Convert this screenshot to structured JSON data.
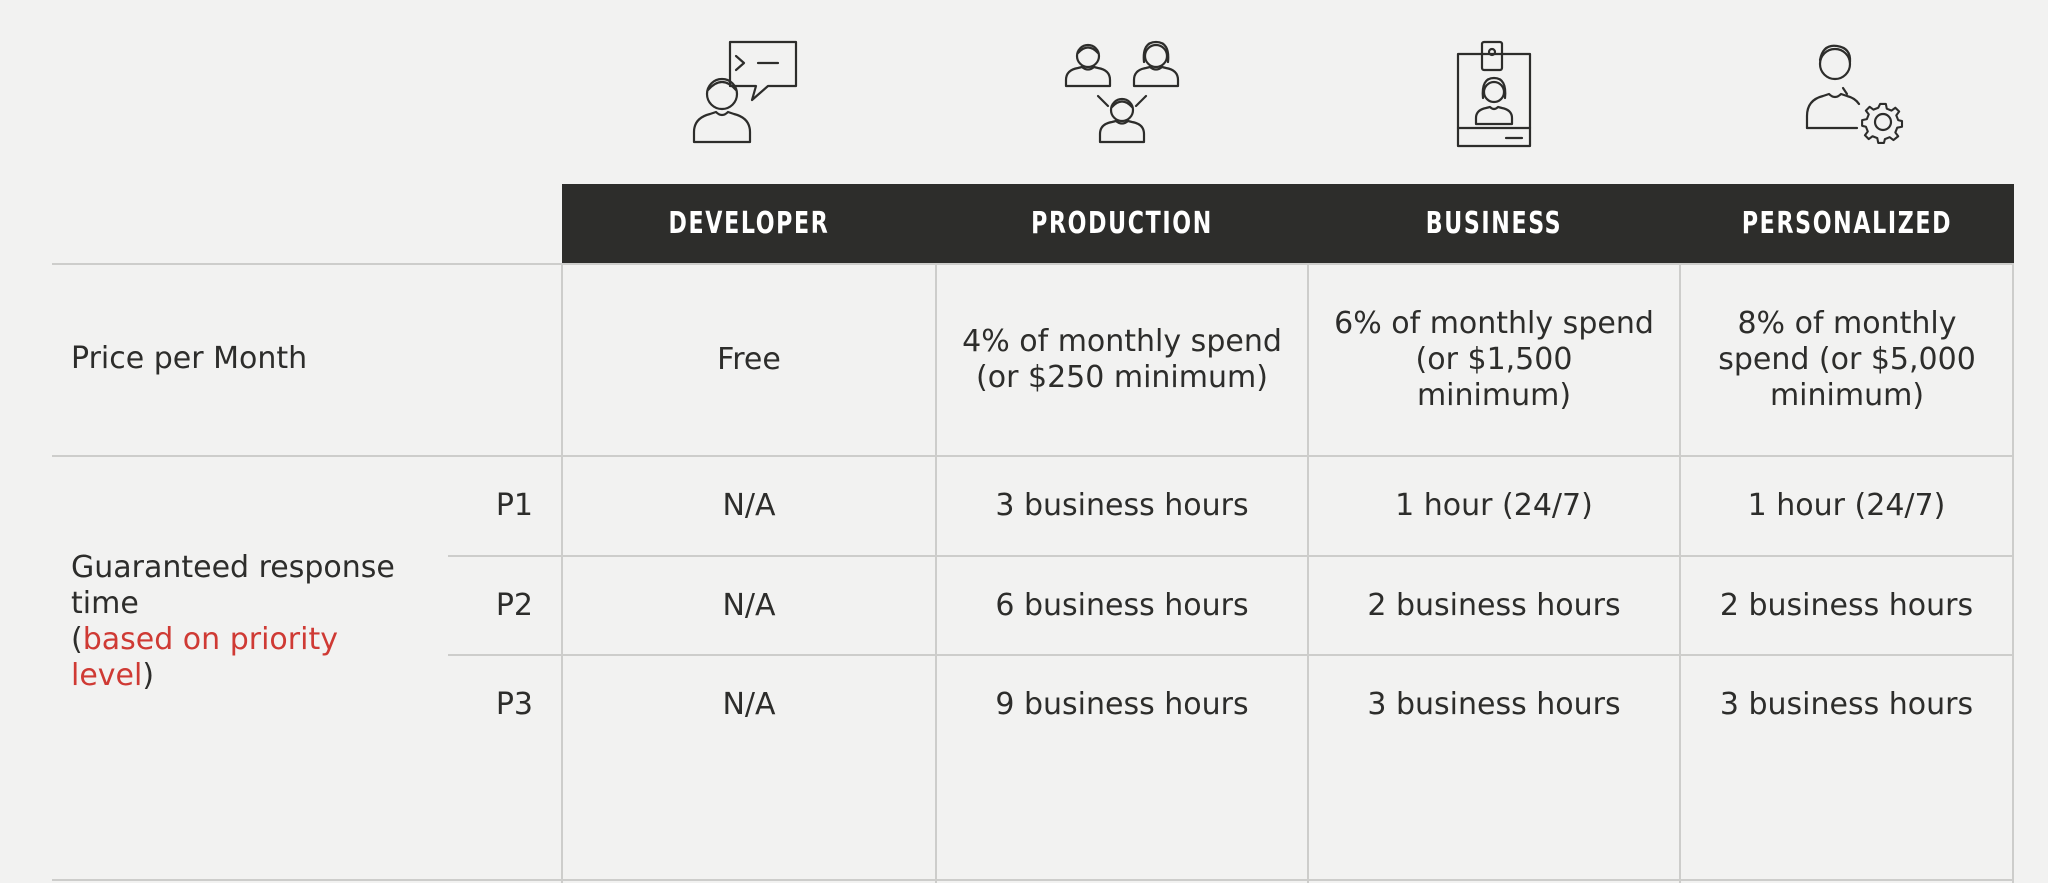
{
  "tiers": [
    {
      "key": "developer",
      "name": "DEVELOPER",
      "icon": "developer-chat-icon"
    },
    {
      "key": "production",
      "name": "PRODUCTION",
      "icon": "team-group-icon"
    },
    {
      "key": "business",
      "name": "BUSINESS",
      "icon": "id-badge-icon"
    },
    {
      "key": "personalized",
      "name": "PERSONALIZED",
      "icon": "user-gear-icon"
    }
  ],
  "price_row": {
    "label": "Price per Month",
    "values": [
      "Free",
      "4% of monthly spend (or $250 minimum)",
      "6% of monthly spend (or $1,500 minimum)",
      "8% of monthly spend (or $5,000 minimum)"
    ]
  },
  "response_section": {
    "label_main": "Guaranteed response time",
    "label_paren_open": "(",
    "label_accent": "based on priority level",
    "label_paren_close": ")",
    "accent_color": "#cf3a34",
    "rows": [
      {
        "priority": "P1",
        "values": [
          "N/A",
          "3 business hours",
          "1 hour (24/7)",
          "1 hour (24/7)"
        ]
      },
      {
        "priority": "P2",
        "values": [
          "N/A",
          "6 business hours",
          "2 business hours",
          "2 business hours"
        ]
      },
      {
        "priority": "P3",
        "values": [
          "N/A",
          "9 business hours",
          "3 business hours",
          "3 business hours"
        ]
      }
    ]
  },
  "colors": {
    "background": "#f2f2f1",
    "header_bg": "#2d2d2b",
    "header_text": "#ffffff",
    "grid": "#cdcdcb",
    "text": "#2d2d2b"
  }
}
